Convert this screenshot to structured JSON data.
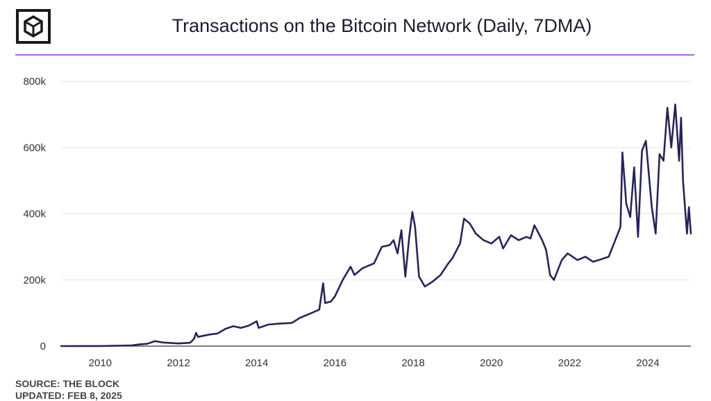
{
  "header": {
    "logo_icon": "cube-outline-icon",
    "title": "Transactions on the Bitcoin Network (Daily, 7DMA)",
    "accent_color": "#b45fe0"
  },
  "footer": {
    "source": "SOURCE: THE BLOCK",
    "updated": "UPDATED: FEB 8, 2025"
  },
  "chart_data": {
    "type": "line",
    "title": "Transactions on the Bitcoin Network (Daily, 7DMA)",
    "xlabel": "",
    "ylabel": "",
    "xlim": [
      2009.0,
      2025.1
    ],
    "ylim": [
      0,
      800000
    ],
    "grid": true,
    "line_color": "#27245a",
    "x_ticks": [
      {
        "value": 2010,
        "label": "2010"
      },
      {
        "value": 2012,
        "label": "2012"
      },
      {
        "value": 2014,
        "label": "2014"
      },
      {
        "value": 2016,
        "label": "2016"
      },
      {
        "value": 2018,
        "label": "2018"
      },
      {
        "value": 2020,
        "label": "2020"
      },
      {
        "value": 2022,
        "label": "2022"
      },
      {
        "value": 2024,
        "label": "2024"
      }
    ],
    "y_ticks": [
      {
        "value": 0,
        "label": "0"
      },
      {
        "value": 200000,
        "label": "200k"
      },
      {
        "value": 400000,
        "label": "400k"
      },
      {
        "value": 600000,
        "label": "600k"
      },
      {
        "value": 800000,
        "label": "800k"
      }
    ],
    "series": [
      {
        "name": "",
        "points": [
          [
            2009.0,
            0
          ],
          [
            2010.0,
            300
          ],
          [
            2010.8,
            2000
          ],
          [
            2011.0,
            5000
          ],
          [
            2011.2,
            7000
          ],
          [
            2011.4,
            15000
          ],
          [
            2011.6,
            11000
          ],
          [
            2012.0,
            8000
          ],
          [
            2012.3,
            10000
          ],
          [
            2012.4,
            22000
          ],
          [
            2012.45,
            40000
          ],
          [
            2012.5,
            28000
          ],
          [
            2012.8,
            35000
          ],
          [
            2013.0,
            38000
          ],
          [
            2013.2,
            52000
          ],
          [
            2013.4,
            60000
          ],
          [
            2013.6,
            55000
          ],
          [
            2013.8,
            62000
          ],
          [
            2014.0,
            75000
          ],
          [
            2014.05,
            55000
          ],
          [
            2014.3,
            65000
          ],
          [
            2014.6,
            68000
          ],
          [
            2014.9,
            70000
          ],
          [
            2015.1,
            85000
          ],
          [
            2015.4,
            100000
          ],
          [
            2015.6,
            110000
          ],
          [
            2015.7,
            190000
          ],
          [
            2015.75,
            130000
          ],
          [
            2015.9,
            135000
          ],
          [
            2016.0,
            150000
          ],
          [
            2016.2,
            200000
          ],
          [
            2016.4,
            240000
          ],
          [
            2016.5,
            215000
          ],
          [
            2016.7,
            235000
          ],
          [
            2016.9,
            245000
          ],
          [
            2017.0,
            250000
          ],
          [
            2017.2,
            300000
          ],
          [
            2017.4,
            305000
          ],
          [
            2017.5,
            320000
          ],
          [
            2017.6,
            280000
          ],
          [
            2017.7,
            350000
          ],
          [
            2017.8,
            210000
          ],
          [
            2017.9,
            330000
          ],
          [
            2017.98,
            405000
          ],
          [
            2018.05,
            360000
          ],
          [
            2018.15,
            210000
          ],
          [
            2018.3,
            180000
          ],
          [
            2018.5,
            195000
          ],
          [
            2018.7,
            215000
          ],
          [
            2018.9,
            250000
          ],
          [
            2019.0,
            265000
          ],
          [
            2019.2,
            310000
          ],
          [
            2019.3,
            385000
          ],
          [
            2019.45,
            370000
          ],
          [
            2019.6,
            340000
          ],
          [
            2019.8,
            320000
          ],
          [
            2020.0,
            310000
          ],
          [
            2020.2,
            330000
          ],
          [
            2020.3,
            295000
          ],
          [
            2020.5,
            335000
          ],
          [
            2020.7,
            320000
          ],
          [
            2020.9,
            330000
          ],
          [
            2021.0,
            325000
          ],
          [
            2021.1,
            365000
          ],
          [
            2021.3,
            320000
          ],
          [
            2021.4,
            290000
          ],
          [
            2021.5,
            215000
          ],
          [
            2021.6,
            200000
          ],
          [
            2021.8,
            260000
          ],
          [
            2021.95,
            280000
          ],
          [
            2022.2,
            260000
          ],
          [
            2022.4,
            270000
          ],
          [
            2022.6,
            255000
          ],
          [
            2022.8,
            262000
          ],
          [
            2023.0,
            270000
          ],
          [
            2023.2,
            330000
          ],
          [
            2023.3,
            360000
          ],
          [
            2023.35,
            585000
          ],
          [
            2023.45,
            430000
          ],
          [
            2023.55,
            390000
          ],
          [
            2023.65,
            540000
          ],
          [
            2023.75,
            330000
          ],
          [
            2023.85,
            590000
          ],
          [
            2023.95,
            620000
          ],
          [
            2024.1,
            420000
          ],
          [
            2024.2,
            340000
          ],
          [
            2024.3,
            580000
          ],
          [
            2024.4,
            560000
          ],
          [
            2024.5,
            720000
          ],
          [
            2024.6,
            600000
          ],
          [
            2024.7,
            730000
          ],
          [
            2024.8,
            560000
          ],
          [
            2024.85,
            690000
          ],
          [
            2024.9,
            500000
          ],
          [
            2025.0,
            340000
          ],
          [
            2025.05,
            420000
          ],
          [
            2025.1,
            340000
          ]
        ]
      }
    ]
  }
}
